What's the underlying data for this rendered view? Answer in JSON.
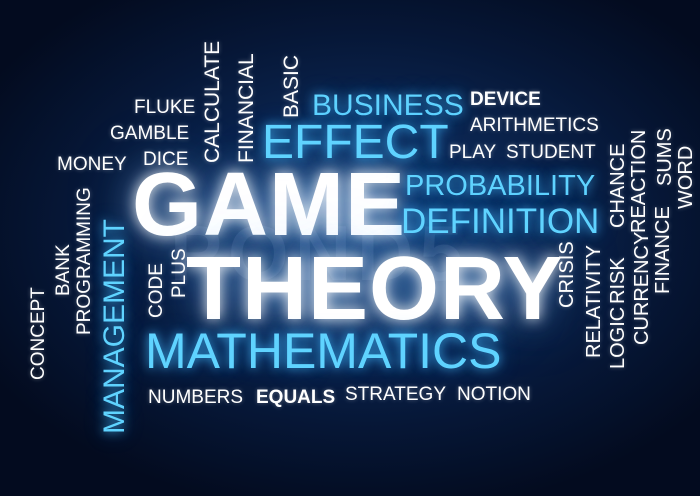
{
  "watermark": "POND5",
  "colors": {
    "background": "#061737",
    "word_white": "#ffffff",
    "word_blue": "#5fd3ff"
  },
  "words": {
    "game": "GAME",
    "theory": "THEORY",
    "mathematics": "MATHEMATICS",
    "effect": "EFFECT",
    "business": "BUSINESS",
    "probability": "PROBABILITY",
    "definition": "DEFINITION",
    "management": "MANAGEMENT",
    "device": "DEVICE",
    "arithmetics": "ARITHMETICS",
    "play": "PLAY",
    "student": "STUDENT",
    "fluke": "FLUKE",
    "gamble": "GAMBLE",
    "dice": "DICE",
    "money": "MONEY",
    "calculate": "CALCULATE",
    "financial": "FINANCIAL",
    "basic": "BASIC",
    "concept": "CONCEPT",
    "bank": "BANK",
    "programming": "PROGRAMMING",
    "code": "CODE",
    "plus": "PLUS",
    "crisis": "CRISIS",
    "relativity": "RELATIVITY",
    "logic": "LOGIC",
    "risk": "RISK",
    "chance": "CHANCE",
    "currency": "CURRENCY",
    "reaction": "REACTION",
    "finance": "FINANCE",
    "sums": "SUMS",
    "word": "WORD",
    "numbers": "NUMBERS",
    "equals": "EQUALS",
    "strategy": "STRATEGY",
    "notion": "NOTION"
  }
}
